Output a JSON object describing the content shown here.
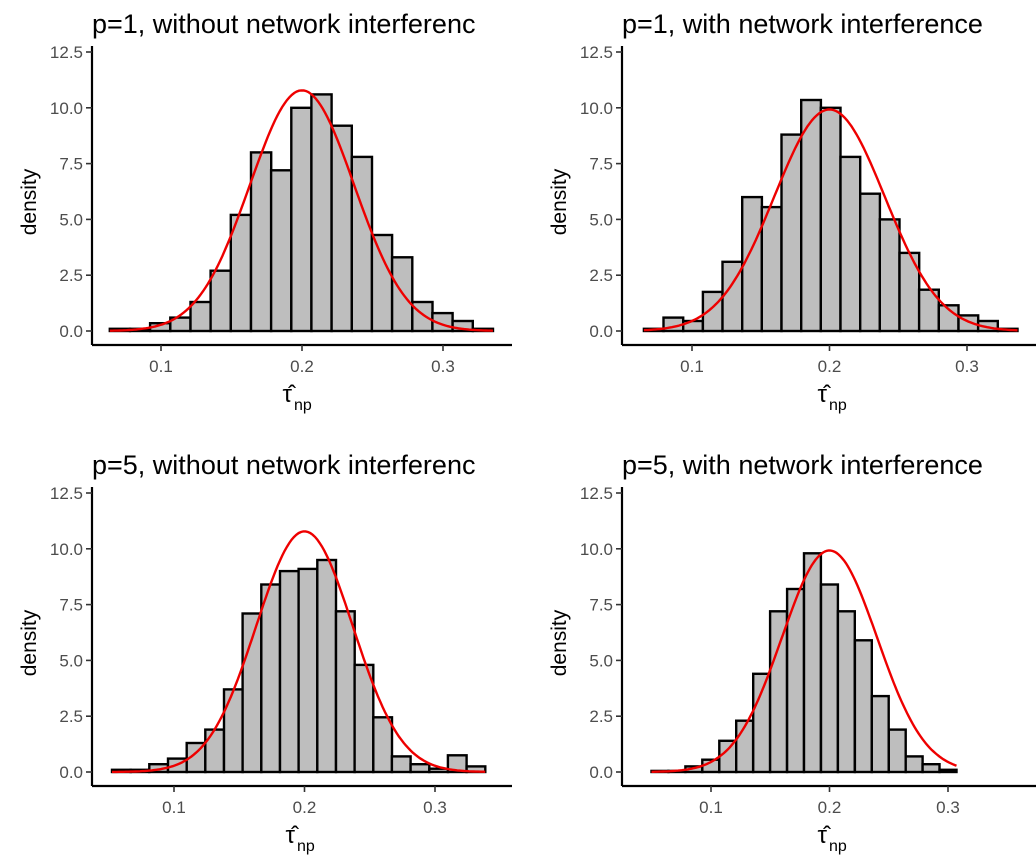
{
  "chart_data": [
    {
      "type": "bar",
      "title": "p=1, without network interferenc",
      "ylabel": "density",
      "xlabel": "τ̂np",
      "xlabel_main": "τ̂",
      "xlabel_sub": "np",
      "xlim": [
        0.06,
        0.34
      ],
      "ylim": [
        0,
        12.5
      ],
      "xticks": [
        "0.1",
        "0.2",
        "0.3"
      ],
      "yticks": [
        "0.0",
        "2.5",
        "5.0",
        "7.5",
        "10.0",
        "12.5"
      ],
      "bins": {
        "start": 0.0637,
        "width": 0.0143
      },
      "values": [
        0.1,
        0.1,
        0.35,
        0.6,
        1.3,
        2.7,
        5.2,
        8.0,
        7.2,
        10.0,
        10.6,
        9.2,
        7.8,
        4.3,
        3.3,
        1.3,
        0.8,
        0.45,
        0.1
      ],
      "series": [
        {
          "name": "",
          "type": "normal density",
          "color": "#ee0000",
          "mean": 0.2,
          "sd": 0.037
        }
      ],
      "grid": false
    },
    {
      "type": "bar",
      "title": "p=1, with network interference",
      "ylabel": "density",
      "xlabel": "τ̂np",
      "xlabel_main": "τ̂",
      "xlabel_sub": "np",
      "xlim": [
        0.06,
        0.34
      ],
      "ylim": [
        0,
        12.5
      ],
      "xticks": [
        "0.1",
        "0.2",
        "0.3"
      ],
      "yticks": [
        "0.0",
        "2.5",
        "5.0",
        "7.5",
        "10.0",
        "12.5"
      ],
      "bins": {
        "start": 0.065,
        "width": 0.0143
      },
      "values": [
        0.1,
        0.6,
        0.45,
        1.75,
        3.1,
        6.0,
        5.55,
        8.8,
        10.35,
        10.0,
        7.8,
        6.15,
        5.0,
        3.5,
        1.85,
        1.15,
        0.7,
        0.45,
        0.1
      ],
      "series": [
        {
          "name": "",
          "type": "normal density",
          "color": "#ee0000",
          "mean": 0.2,
          "sd": 0.0402
        }
      ],
      "grid": false
    },
    {
      "type": "bar",
      "title": "p=5, without network interferenc",
      "ylabel": "density",
      "xlabel": "τ̂np",
      "xlabel_main": "τ̂",
      "xlabel_sub": "np",
      "xlim": [
        0.05,
        0.34
      ],
      "ylim": [
        0,
        12.5
      ],
      "xticks": [
        "0.1",
        "0.2",
        "0.3"
      ],
      "yticks": [
        "0.0",
        "2.5",
        "5.0",
        "7.5",
        "10.0",
        "12.5"
      ],
      "bins": {
        "start": 0.0525,
        "width": 0.0143
      },
      "values": [
        0.1,
        0.1,
        0.35,
        0.6,
        1.3,
        1.9,
        3.7,
        7.1,
        8.4,
        9.0,
        9.1,
        9.5,
        7.2,
        4.8,
        2.45,
        0.7,
        0.35,
        0.15,
        0.75,
        0.25
      ],
      "series": [
        {
          "name": "",
          "type": "normal density",
          "color": "#ee0000",
          "mean": 0.2,
          "sd": 0.037
        }
      ],
      "grid": false
    },
    {
      "type": "bar",
      "title": "p=5, with network interference",
      "ylabel": "density",
      "xlabel": "τ̂np",
      "xlabel_main": "τ̂",
      "xlabel_sub": "np",
      "xlim": [
        0.04,
        0.365
      ],
      "ylim": [
        0,
        12.5
      ],
      "xticks": [
        "0.1",
        "0.2",
        "0.3"
      ],
      "yticks": [
        "0.0",
        "2.5",
        "5.0",
        "7.5",
        "10.0",
        "12.5"
      ],
      "bins": {
        "start": 0.0498,
        "width": 0.0143
      },
      "values": [
        0.05,
        0.05,
        0.25,
        0.55,
        1.4,
        2.3,
        4.4,
        7.2,
        8.2,
        9.8,
        8.4,
        7.2,
        5.9,
        3.4,
        1.9,
        0.7,
        0.35,
        0.1
      ],
      "series": [
        {
          "name": "",
          "type": "normal density",
          "color": "#ee0000",
          "mean": 0.2,
          "sd": 0.0402
        }
      ],
      "grid": false
    }
  ]
}
